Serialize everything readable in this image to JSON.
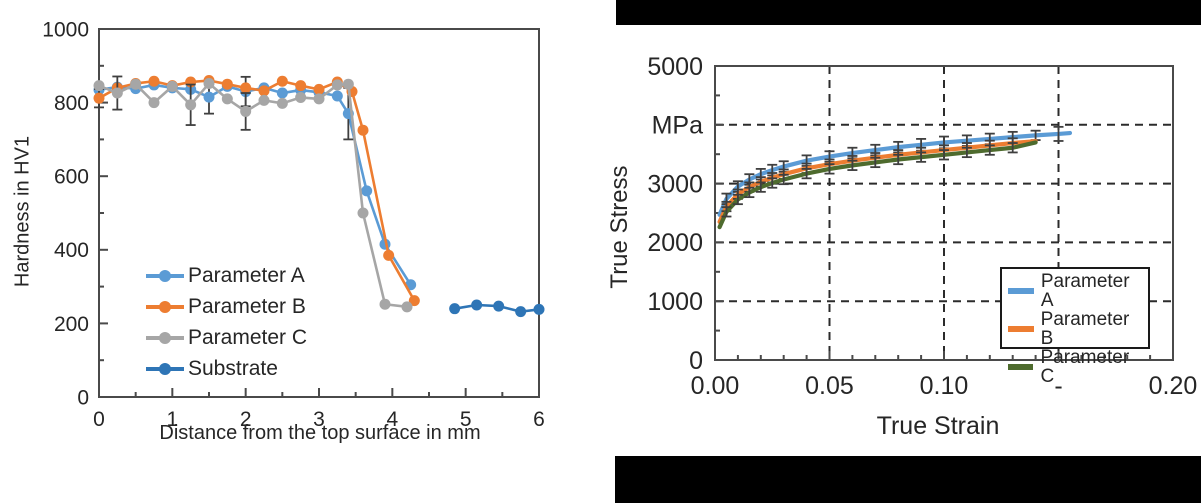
{
  "figure": {
    "description_colors": {
      "frame": "#4a4a4a",
      "errorbar": "#3f3f3f",
      "letterbox": "#000000"
    }
  },
  "chart_data": [
    {
      "id": "hardness_profile",
      "type": "line",
      "title": "",
      "xlabel": "Distance from the top surface in mm",
      "ylabel": "Hardness in HV1",
      "xlim": [
        0,
        6
      ],
      "ylim": [
        0,
        1000
      ],
      "xticks": {
        "values": [
          0,
          1,
          2,
          3,
          4,
          5,
          6
        ],
        "labels": [
          "0",
          "1",
          "2",
          "3",
          "4",
          "5",
          "6"
        ]
      },
      "yticks": {
        "values": [
          0,
          200,
          400,
          600,
          800,
          1000
        ],
        "labels": [
          "0",
          "200",
          "400",
          "600",
          "800",
          "1000"
        ]
      },
      "grid": "none",
      "legend_position": "inside-center-left",
      "series": [
        {
          "name": "Parameter A",
          "color": "#5B9BD5",
          "marker": "circle",
          "x": [
            0,
            0.25,
            0.5,
            0.75,
            1,
            1.25,
            1.5,
            1.75,
            2,
            2.25,
            2.5,
            2.75,
            3,
            3.25,
            3.4,
            3.65,
            3.9,
            4.25
          ],
          "y": [
            835,
            842,
            838,
            848,
            840,
            836,
            815,
            844,
            830,
            840,
            826,
            834,
            828,
            818,
            770,
            560,
            415,
            305
          ],
          "err": [
            0,
            0,
            0,
            0,
            0,
            0,
            45,
            0,
            40,
            0,
            0,
            0,
            0,
            0,
            70,
            0,
            0,
            0
          ]
        },
        {
          "name": "Parameter B",
          "color": "#ED7D31",
          "marker": "circle",
          "x": [
            0,
            0.25,
            0.5,
            0.75,
            1,
            1.25,
            1.5,
            1.75,
            2,
            2.25,
            2.5,
            2.75,
            3,
            3.25,
            3.45,
            3.6,
            3.95,
            4.3
          ],
          "y": [
            812,
            840,
            852,
            858,
            846,
            856,
            860,
            850,
            840,
            832,
            858,
            846,
            836,
            856,
            830,
            725,
            385,
            262
          ],
          "err": [
            25,
            0,
            0,
            0,
            0,
            0,
            0,
            0,
            0,
            0,
            0,
            0,
            0,
            0,
            0,
            0,
            0,
            0
          ]
        },
        {
          "name": "Parameter C",
          "color": "#A6A6A6",
          "marker": "circle",
          "x": [
            0,
            0.25,
            0.5,
            0.75,
            1,
            1.25,
            1.5,
            1.75,
            2,
            2.25,
            2.5,
            2.75,
            3,
            3.25,
            3.4,
            3.6,
            3.9,
            4.2
          ],
          "y": [
            846,
            826,
            850,
            800,
            844,
            794,
            852,
            810,
            776,
            806,
            798,
            814,
            810,
            848,
            850,
            500,
            252,
            245
          ],
          "err": [
            0,
            45,
            0,
            0,
            0,
            55,
            0,
            0,
            50,
            0,
            0,
            0,
            0,
            0,
            0,
            0,
            0,
            0
          ]
        },
        {
          "name": "Substrate",
          "color": "#2E75B6",
          "marker": "circle",
          "x": [
            4.85,
            5.15,
            5.45,
            5.75,
            6.0
          ],
          "y": [
            240,
            250,
            247,
            232,
            238
          ],
          "err": [
            0,
            0,
            0,
            0,
            0
          ]
        }
      ]
    },
    {
      "id": "true_stress_strain",
      "type": "line",
      "title": "",
      "xlabel": "True Strain",
      "ylabel": "True Stress",
      "units_label": "MPa",
      "xlim": [
        0,
        0.2
      ],
      "ylim": [
        0,
        5000
      ],
      "xticks": {
        "values": [
          0,
          0.05,
          0.1,
          0.15,
          0.2
        ],
        "labels": [
          "0.00",
          "0.05",
          "0.10",
          "-",
          "0.20"
        ]
      },
      "yticks": {
        "values": [
          0,
          1000,
          2000,
          3000,
          4000,
          5000
        ],
        "labels": [
          "0",
          "1000",
          "2000",
          "3000",
          "MPa",
          "5000"
        ]
      },
      "grid": "dashed",
      "xgrid": [
        0.05,
        0.1,
        0.15
      ],
      "ygrid": [
        1000,
        2000,
        3000,
        4000
      ],
      "legend_position": "inside-bottom-right",
      "series": [
        {
          "name": "Parameter A",
          "color": "#5B9BD5",
          "marker": "none",
          "x": [
            0.002,
            0.005,
            0.01,
            0.015,
            0.02,
            0.025,
            0.03,
            0.04,
            0.05,
            0.06,
            0.07,
            0.08,
            0.09,
            0.1,
            0.11,
            0.12,
            0.13,
            0.14,
            0.15,
            0.155
          ],
          "y": [
            2470,
            2740,
            2950,
            3070,
            3160,
            3230,
            3290,
            3390,
            3460,
            3520,
            3570,
            3620,
            3660,
            3700,
            3730,
            3760,
            3790,
            3820,
            3845,
            3860
          ],
          "err": [
            0,
            90,
            90,
            90,
            90,
            90,
            90,
            90,
            90,
            90,
            90,
            90,
            100,
            100,
            90,
            90,
            90,
            80,
            120,
            0
          ]
        },
        {
          "name": "Parameter B",
          "color": "#ED7D31",
          "marker": "none",
          "x": [
            0.002,
            0.005,
            0.01,
            0.015,
            0.02,
            0.025,
            0.03,
            0.04,
            0.05,
            0.06,
            0.07,
            0.08,
            0.09,
            0.1,
            0.11,
            0.12,
            0.13,
            0.14
          ],
          "y": [
            2350,
            2610,
            2820,
            2940,
            3030,
            3100,
            3160,
            3260,
            3330,
            3390,
            3440,
            3490,
            3530,
            3570,
            3610,
            3650,
            3690,
            3720
          ],
          "err": [
            0,
            80,
            80,
            80,
            80,
            80,
            80,
            80,
            80,
            80,
            80,
            80,
            80,
            80,
            80,
            80,
            80,
            0
          ]
        },
        {
          "name": "Parameter C",
          "color": "#4E6B2E",
          "marker": "none",
          "x": [
            0.002,
            0.005,
            0.01,
            0.015,
            0.02,
            0.025,
            0.03,
            0.04,
            0.05,
            0.06,
            0.07,
            0.08,
            0.09,
            0.1,
            0.11,
            0.12,
            0.13,
            0.14
          ],
          "y": [
            2260,
            2520,
            2730,
            2850,
            2940,
            3010,
            3070,
            3170,
            3250,
            3310,
            3360,
            3410,
            3450,
            3490,
            3530,
            3570,
            3610,
            3700
          ],
          "err": [
            0,
            80,
            80,
            80,
            80,
            80,
            80,
            80,
            80,
            80,
            80,
            80,
            80,
            80,
            80,
            80,
            80,
            0
          ]
        }
      ]
    }
  ]
}
